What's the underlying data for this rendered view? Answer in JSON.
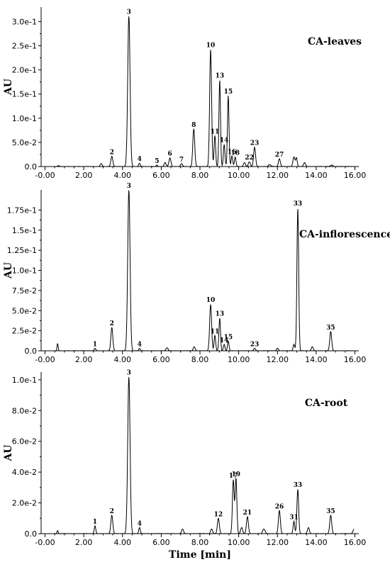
{
  "chart_data": [
    {
      "type": "line",
      "title": "CA-leaves",
      "ylabel": "AU",
      "xlabel": "",
      "xlim": [
        -0.2,
        16.2
      ],
      "ylim": [
        0,
        0.33
      ],
      "y_ticks": [
        0,
        0.05,
        0.1,
        0.15,
        0.2,
        0.25,
        0.3
      ],
      "y_tick_labels": [
        "0.0",
        "5.0e-2",
        "1.0e-1",
        "1.5e-1",
        "2.0e-1",
        "2.5e-1",
        "3.0e-1"
      ],
      "x_ticks": [
        0,
        2,
        4,
        6,
        8,
        10,
        12,
        14,
        16
      ],
      "x_tick_labels": [
        "-0.00",
        "2.00",
        "4.00",
        "6.00",
        "8.00",
        "10.00",
        "12.00",
        "14.00",
        "16.00"
      ],
      "peaks": [
        {
          "label": "2",
          "x": 3.45,
          "y": 0.021,
          "w": 0.05
        },
        {
          "label": "3",
          "x": 4.33,
          "y": 0.312,
          "w": 0.06
        },
        {
          "label": "4",
          "x": 4.88,
          "y": 0.007,
          "w": 0.04
        },
        {
          "label": "5",
          "x": 5.78,
          "y": 0.003,
          "w": 0.04
        },
        {
          "label": "6",
          "x": 6.45,
          "y": 0.018,
          "w": 0.05
        },
        {
          "label": "7",
          "x": 7.05,
          "y": 0.006,
          "w": 0.05
        },
        {
          "label": "8",
          "x": 7.68,
          "y": 0.078,
          "w": 0.05
        },
        {
          "label": "10",
          "x": 8.55,
          "y": 0.243,
          "w": 0.05
        },
        {
          "label": "11",
          "x": 8.77,
          "y": 0.064,
          "w": 0.04
        },
        {
          "label": "13",
          "x": 9.02,
          "y": 0.18,
          "w": 0.04
        },
        {
          "label": "14",
          "x": 9.25,
          "y": 0.046,
          "w": 0.04
        },
        {
          "label": "15",
          "x": 9.46,
          "y": 0.147,
          "w": 0.04
        },
        {
          "label": "16",
          "x": 9.65,
          "y": 0.022,
          "w": 0.04
        },
        {
          "label": "18",
          "x": 9.82,
          "y": 0.02,
          "w": 0.04
        },
        {
          "label": "22",
          "x": 10.55,
          "y": 0.01,
          "w": 0.05
        },
        {
          "label": "23",
          "x": 10.82,
          "y": 0.04,
          "w": 0.05
        },
        {
          "label": "27",
          "x": 12.1,
          "y": 0.016,
          "w": 0.05
        },
        {
          "label": "",
          "x": 12.85,
          "y": 0.02,
          "w": 0.05
        },
        {
          "label": "",
          "x": 12.98,
          "y": 0.018,
          "w": 0.04
        },
        {
          "label": "",
          "x": 13.4,
          "y": 0.008,
          "w": 0.05
        },
        {
          "label": "",
          "x": 2.9,
          "y": 0.006,
          "w": 0.05
        },
        {
          "label": "",
          "x": 6.2,
          "y": 0.008,
          "w": 0.05
        },
        {
          "label": "",
          "x": 11.6,
          "y": 0.004,
          "w": 0.06
        },
        {
          "label": "",
          "x": 10.3,
          "y": 0.008,
          "w": 0.05
        },
        {
          "label": "",
          "x": 14.8,
          "y": 0.003,
          "w": 0.06
        },
        {
          "label": "",
          "x": 0.7,
          "y": 0.002,
          "w": 0.04
        }
      ]
    },
    {
      "type": "line",
      "title": "CA-inflorescence",
      "ylabel": "AU",
      "xlabel": "",
      "xlim": [
        -0.2,
        16.2
      ],
      "ylim": [
        0,
        0.2
      ],
      "y_ticks": [
        0,
        0.025,
        0.05,
        0.075,
        0.1,
        0.125,
        0.15,
        0.175
      ],
      "y_tick_labels": [
        "0.0",
        "2.5e-2",
        "5.0e-2",
        "7.5e-2",
        "1.0e-1",
        "1.25e-1",
        "1.5e-1",
        "1.75e-1"
      ],
      "x_ticks": [
        0,
        2,
        4,
        6,
        8,
        10,
        12,
        14,
        16
      ],
      "x_tick_labels": [
        "-0.00",
        "2.00",
        "4.00",
        "6.00",
        "8.00",
        "10.00",
        "12.00",
        "14.00",
        "16.00"
      ],
      "peaks": [
        {
          "label": "",
          "x": 0.65,
          "y": 0.009,
          "w": 0.03
        },
        {
          "label": "1",
          "x": 2.58,
          "y": 0.003,
          "w": 0.04
        },
        {
          "label": "2",
          "x": 3.45,
          "y": 0.029,
          "w": 0.05
        },
        {
          "label": "3",
          "x": 4.33,
          "y": 0.2,
          "w": 0.06
        },
        {
          "label": "4",
          "x": 4.88,
          "y": 0.003,
          "w": 0.04
        },
        {
          "label": "",
          "x": 6.3,
          "y": 0.004,
          "w": 0.05
        },
        {
          "label": "",
          "x": 7.7,
          "y": 0.005,
          "w": 0.05
        },
        {
          "label": "10",
          "x": 8.55,
          "y": 0.058,
          "w": 0.05
        },
        {
          "label": "11",
          "x": 8.77,
          "y": 0.019,
          "w": 0.04
        },
        {
          "label": "13",
          "x": 9.02,
          "y": 0.041,
          "w": 0.04
        },
        {
          "label": "14",
          "x": 9.25,
          "y": 0.008,
          "w": 0.04
        },
        {
          "label": "15",
          "x": 9.46,
          "y": 0.012,
          "w": 0.04
        },
        {
          "label": "23",
          "x": 10.82,
          "y": 0.003,
          "w": 0.05
        },
        {
          "label": "",
          "x": 12.85,
          "y": 0.008,
          "w": 0.04
        },
        {
          "label": "33",
          "x": 13.05,
          "y": 0.178,
          "w": 0.045
        },
        {
          "label": "",
          "x": 13.8,
          "y": 0.005,
          "w": 0.05
        },
        {
          "label": "35",
          "x": 14.75,
          "y": 0.024,
          "w": 0.05
        },
        {
          "label": "",
          "x": 12.0,
          "y": 0.003,
          "w": 0.05
        }
      ]
    },
    {
      "type": "line",
      "title": "CA-root",
      "ylabel": "AU",
      "xlabel": "Time [min]",
      "xlim": [
        -0.2,
        16.2
      ],
      "ylim": [
        0,
        0.105
      ],
      "y_ticks": [
        0,
        0.02,
        0.04,
        0.06,
        0.08,
        0.1
      ],
      "y_tick_labels": [
        "0.0",
        "2.0e-2",
        "4.0e-2",
        "6.0e-2",
        "8.0e-2",
        "1.0e-1"
      ],
      "x_ticks": [
        0,
        2,
        4,
        6,
        8,
        10,
        12,
        14,
        16
      ],
      "x_tick_labels": [
        "-0.00",
        "2.00",
        "4.00",
        "6.00",
        "8.00",
        "10.00",
        "12.00",
        "14.00",
        "16.00"
      ],
      "peaks": [
        {
          "label": "",
          "x": 0.65,
          "y": 0.002,
          "w": 0.03
        },
        {
          "label": "1",
          "x": 2.58,
          "y": 0.005,
          "w": 0.04
        },
        {
          "label": "2",
          "x": 3.45,
          "y": 0.012,
          "w": 0.05
        },
        {
          "label": "3",
          "x": 4.33,
          "y": 0.102,
          "w": 0.06
        },
        {
          "label": "4",
          "x": 4.88,
          "y": 0.004,
          "w": 0.04
        },
        {
          "label": "",
          "x": 7.1,
          "y": 0.003,
          "w": 0.05
        },
        {
          "label": "",
          "x": 8.6,
          "y": 0.003,
          "w": 0.05
        },
        {
          "label": "12",
          "x": 8.95,
          "y": 0.01,
          "w": 0.05
        },
        {
          "label": "17",
          "x": 9.72,
          "y": 0.035,
          "w": 0.045
        },
        {
          "label": "19",
          "x": 9.86,
          "y": 0.036,
          "w": 0.045
        },
        {
          "label": "",
          "x": 10.15,
          "y": 0.004,
          "w": 0.05
        },
        {
          "label": "21",
          "x": 10.45,
          "y": 0.011,
          "w": 0.05
        },
        {
          "label": "",
          "x": 11.3,
          "y": 0.003,
          "w": 0.06
        },
        {
          "label": "26",
          "x": 12.1,
          "y": 0.015,
          "w": 0.05
        },
        {
          "label": "31",
          "x": 12.85,
          "y": 0.008,
          "w": 0.04
        },
        {
          "label": "33",
          "x": 13.05,
          "y": 0.029,
          "w": 0.045
        },
        {
          "label": "",
          "x": 13.6,
          "y": 0.004,
          "w": 0.05
        },
        {
          "label": "35",
          "x": 14.75,
          "y": 0.012,
          "w": 0.05
        },
        {
          "label": "",
          "x": 15.95,
          "y": 0.003,
          "w": 0.05
        }
      ]
    }
  ]
}
